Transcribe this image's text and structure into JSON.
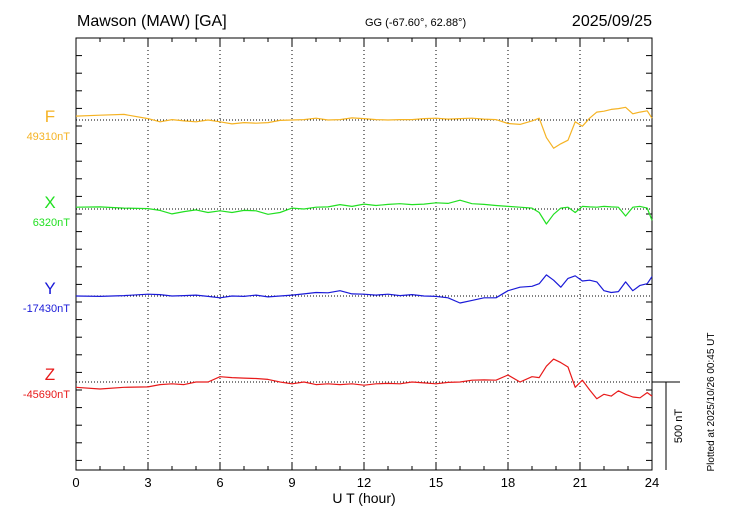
{
  "header": {
    "station": "Mawson (MAW)  [GA]",
    "coords": "GG (-67.60°,  62.88°)",
    "date": "2025/09/25"
  },
  "footer": {
    "plotted": "Plotted at 2025/10/26 00:45 UT",
    "scale_label": "500 nT"
  },
  "chart_data": {
    "type": "line",
    "xlabel": "U T (hour)",
    "xlim": [
      0,
      24
    ],
    "xticks": [
      "0",
      "3",
      "6",
      "9",
      "12",
      "15",
      "18",
      "21",
      "24"
    ],
    "scale_bar_nT": 500,
    "grid": true,
    "series": [
      {
        "name": "F",
        "baseline_label": "49310nT",
        "baseline": 49310,
        "color": "#f5b324",
        "x": [
          0,
          1,
          2,
          3,
          3.5,
          4,
          4.5,
          5,
          5.5,
          6,
          6.5,
          7,
          7.5,
          8,
          8.5,
          9,
          9.5,
          10,
          10.5,
          11,
          11.5,
          12,
          12.5,
          13,
          13.5,
          14,
          14.5,
          15,
          15.5,
          16,
          16.5,
          17,
          17.5,
          18,
          18.5,
          19,
          19.3,
          19.6,
          19.9,
          20.2,
          20.5,
          20.8,
          21.1,
          21.4,
          21.7,
          22,
          22.3,
          22.6,
          22.9,
          23.2,
          23.5,
          23.8,
          24
        ],
        "y": [
          49332,
          49337,
          49342,
          49318,
          49300,
          49312,
          49305,
          49300,
          49310,
          49300,
          49288,
          49295,
          49292,
          49295,
          49308,
          49310,
          49312,
          49320,
          49310,
          49312,
          49322,
          49318,
          49312,
          49310,
          49312,
          49312,
          49318,
          49320,
          49315,
          49318,
          49320,
          49315,
          49312,
          49290,
          49285,
          49305,
          49320,
          49210,
          49150,
          49175,
          49195,
          49300,
          49275,
          49320,
          49355,
          49360,
          49370,
          49375,
          49382,
          49345,
          49355,
          49362,
          49320
        ]
      },
      {
        "name": "X",
        "baseline_label": "6320nT",
        "baseline": 6320,
        "color": "#22e022",
        "x": [
          0,
          1,
          2,
          3,
          3.5,
          4,
          4.5,
          5,
          5.5,
          6,
          6.5,
          7,
          7.5,
          8,
          8.5,
          9,
          9.5,
          10,
          10.5,
          11,
          11.5,
          12,
          12.5,
          13,
          13.5,
          14,
          14.5,
          15,
          15.5,
          16,
          16.5,
          17,
          17.5,
          18,
          18.5,
          19,
          19.3,
          19.6,
          19.9,
          20.2,
          20.5,
          20.8,
          21.1,
          21.4,
          21.7,
          22,
          22.3,
          22.6,
          22.9,
          23.2,
          23.5,
          23.8,
          24
        ],
        "y": [
          6330,
          6332,
          6325,
          6322,
          6312,
          6292,
          6305,
          6315,
          6300,
          6310,
          6300,
          6312,
          6310,
          6290,
          6300,
          6325,
          6320,
          6330,
          6332,
          6345,
          6335,
          6348,
          6340,
          6346,
          6350,
          6345,
          6348,
          6355,
          6352,
          6370,
          6350,
          6346,
          6340,
          6335,
          6330,
          6325,
          6300,
          6235,
          6290,
          6325,
          6330,
          6300,
          6335,
          6332,
          6330,
          6335,
          6332,
          6330,
          6280,
          6330,
          6335,
          6325,
          6255
        ]
      },
      {
        "name": "Y",
        "baseline_label": "-17430nT",
        "baseline": -17430,
        "color": "#1a1ad8",
        "x": [
          0,
          1,
          2,
          3,
          3.5,
          4,
          4.5,
          5,
          5.5,
          6,
          6.5,
          7,
          7.5,
          8,
          8.5,
          9,
          9.5,
          10,
          10.5,
          11,
          11.5,
          12,
          12.5,
          13,
          13.5,
          14,
          14.5,
          15,
          15.5,
          16,
          16.5,
          17,
          17.5,
          18,
          18.5,
          19,
          19.3,
          19.6,
          19.9,
          20.2,
          20.5,
          20.8,
          21.1,
          21.4,
          21.7,
          22,
          22.3,
          22.6,
          22.9,
          23.2,
          23.5,
          23.8,
          24
        ],
        "y": [
          -17430,
          -17432,
          -17428,
          -17420,
          -17422,
          -17430,
          -17428,
          -17425,
          -17432,
          -17440,
          -17430,
          -17432,
          -17425,
          -17435,
          -17430,
          -17425,
          -17418,
          -17410,
          -17412,
          -17400,
          -17418,
          -17420,
          -17425,
          -17420,
          -17428,
          -17422,
          -17430,
          -17432,
          -17440,
          -17470,
          -17455,
          -17440,
          -17440,
          -17400,
          -17380,
          -17375,
          -17360,
          -17310,
          -17340,
          -17380,
          -17330,
          -17315,
          -17345,
          -17340,
          -17350,
          -17400,
          -17410,
          -17405,
          -17350,
          -17400,
          -17370,
          -17360,
          -17320
        ]
      },
      {
        "name": "Z",
        "baseline_label": "-45690nT",
        "baseline": -45690,
        "color": "#e81a1a",
        "x": [
          0,
          1,
          2,
          3,
          3.5,
          4,
          4.5,
          5,
          5.5,
          6,
          6.5,
          7,
          7.5,
          8,
          8.5,
          9,
          9.5,
          10,
          10.5,
          11,
          11.5,
          12,
          12.5,
          13,
          13.5,
          14,
          14.5,
          15,
          15.5,
          16,
          16.5,
          17,
          17.5,
          18,
          18.5,
          19,
          19.3,
          19.6,
          19.9,
          20.2,
          20.5,
          20.8,
          21.1,
          21.4,
          21.7,
          22,
          22.3,
          22.6,
          22.9,
          23.2,
          23.5,
          23.8,
          24
        ],
        "y": [
          -45720,
          -45730,
          -45720,
          -45718,
          -45705,
          -45700,
          -45705,
          -45690,
          -45690,
          -45660,
          -45665,
          -45668,
          -45670,
          -45675,
          -45690,
          -45700,
          -45690,
          -45705,
          -45700,
          -45705,
          -45700,
          -45708,
          -45700,
          -45698,
          -45700,
          -45690,
          -45695,
          -45700,
          -45692,
          -45690,
          -45680,
          -45678,
          -45680,
          -45650,
          -45690,
          -45660,
          -45665,
          -45600,
          -45560,
          -45580,
          -45605,
          -45720,
          -45680,
          -45735,
          -45785,
          -45760,
          -45770,
          -45740,
          -45760,
          -45775,
          -45780,
          -45750,
          -45770
        ]
      }
    ]
  }
}
